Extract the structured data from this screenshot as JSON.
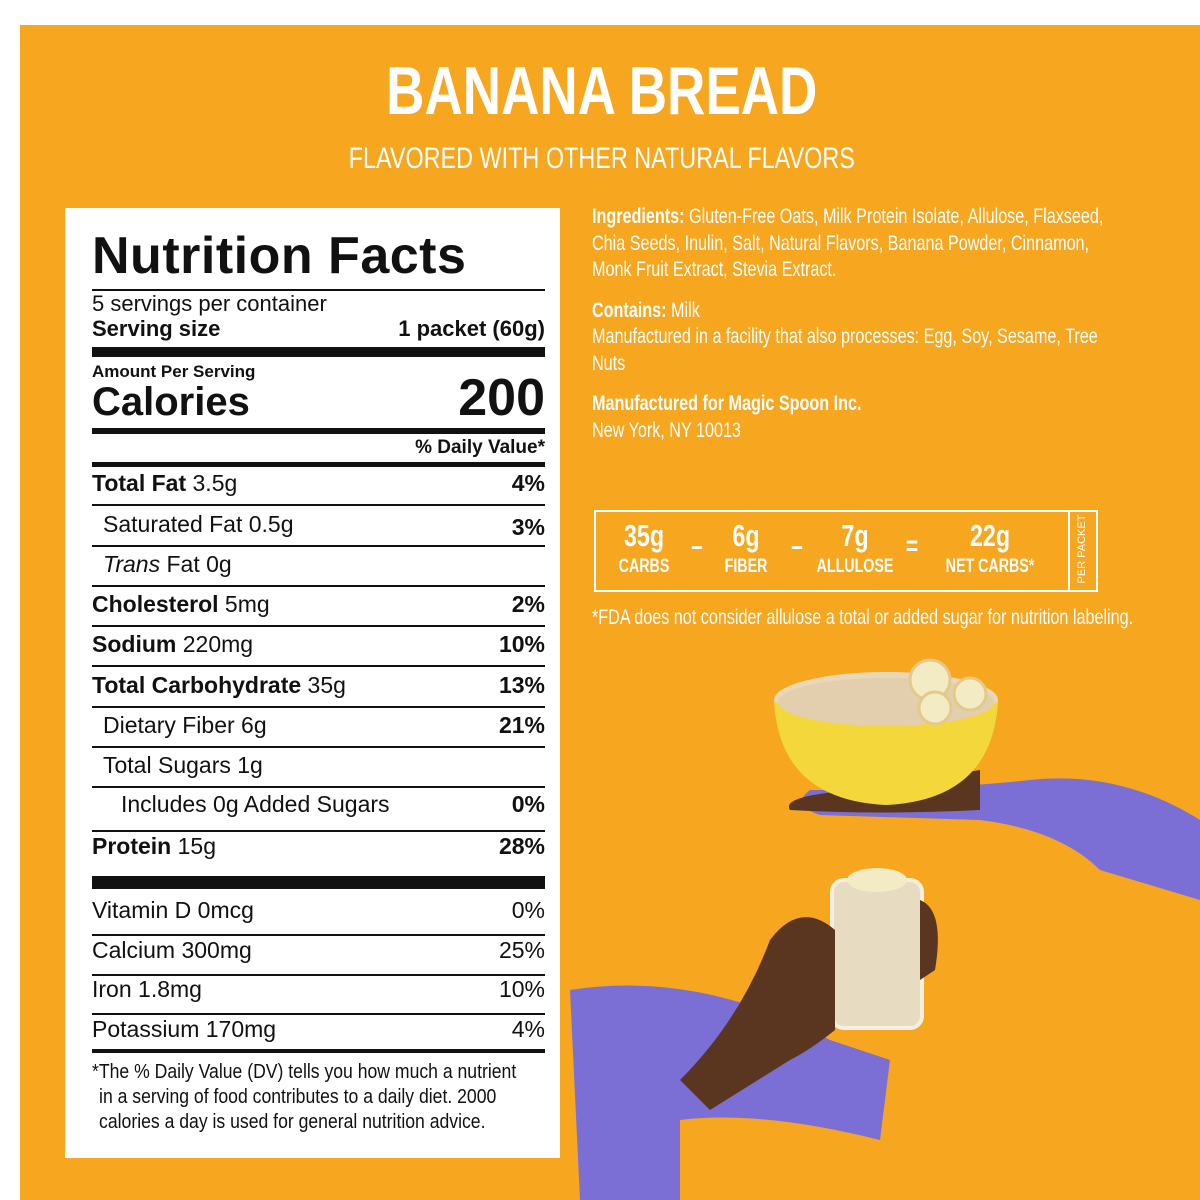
{
  "header": {
    "title": "BANANA BREAD",
    "subtitle": "FLAVORED WITH OTHER NATURAL FLAVORS"
  },
  "nutrition": {
    "title": "Nutrition Facts",
    "servings": "5 servings per container",
    "serving_size_label": "Serving size",
    "serving_size": "1 packet (60g)",
    "amount_per_serving": "Amount Per Serving",
    "calories_label": "Calories",
    "calories": "200",
    "dv_header": "% Daily Value*",
    "rows": [
      {
        "label": "Total Fat",
        "amount": "3.5g",
        "dv": "4%"
      },
      {
        "label": "Saturated Fat",
        "amount": "0.5g",
        "dv": "3%"
      },
      {
        "label": "Trans",
        "amount": "Fat 0g",
        "dv": null
      },
      {
        "label": "Cholesterol",
        "amount": "5mg",
        "dv": "2%"
      },
      {
        "label": "Sodium",
        "amount": "220mg",
        "dv": "10%"
      },
      {
        "label": "Total Carbohydrate",
        "amount": "35g",
        "dv": "13%"
      },
      {
        "label": "Dietary Fiber",
        "amount": "6g",
        "dv": "21%"
      },
      {
        "label": "Total Sugars",
        "amount": "1g",
        "dv": null
      },
      {
        "label": "Includes 0g Added Sugars",
        "amount": null,
        "dv": "0%"
      },
      {
        "label": "Protein",
        "amount": "15g",
        "dv": "28%"
      }
    ],
    "vitamins": [
      {
        "label": "Vitamin D",
        "amount": "0mcg",
        "dv": "0%"
      },
      {
        "label": "Calcium",
        "amount": "300mg",
        "dv": "25%"
      },
      {
        "label": "Iron",
        "amount": "1.8mg",
        "dv": "10%"
      },
      {
        "label": "Potassium",
        "amount": "170mg",
        "dv": "4%"
      }
    ],
    "footnote": "*The % Daily Value (DV) tells you how much a nutrient in a serving of food contributes to a daily diet. 2000 calories a day is used for general nutrition advice."
  },
  "info": {
    "ingredients_label": "Ingredients:",
    "ingredients": "Gluten-Free Oats, Milk Protein Isolate, Allulose, Flaxseed, Chia Seeds, Inulin, Salt, Natural Flavors, Banana Powder, Cinnamon, Monk Fruit Extract, Stevia Extract.",
    "contains_label": "Contains:",
    "contains": "Milk",
    "facility": "Manufactured in a facility that also processes: Egg, Soy, Sesame, Tree Nuts",
    "manufacturer": "Manufactured for Magic Spoon Inc.",
    "address": "New York, NY 10013"
  },
  "net_carbs": {
    "items": [
      {
        "amount": "35g",
        "label": "CARBS"
      },
      {
        "amount": "6g",
        "label": "FIBER"
      },
      {
        "amount": "7g",
        "label": "ALLULOSE"
      },
      {
        "amount": "22g",
        "label": "NET CARBS*"
      }
    ],
    "operators": [
      "–",
      "–",
      "="
    ],
    "side_label": "PER PACKET",
    "footnote": "*FDA does not consider allulose a total or added sugar for nutrition labeling."
  }
}
